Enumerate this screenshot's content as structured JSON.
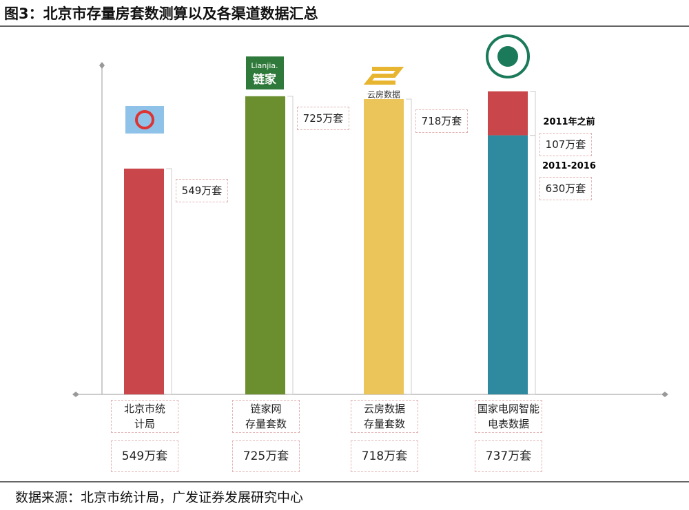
{
  "chart_data": {
    "type": "bar",
    "title": "图3：北京市存量房套数测算以及各渠道数据汇总",
    "source": "数据来源：北京市统计局，广发证券发展研究中心",
    "categories": [
      "北京市统\n计局",
      "链家网\n存量套数",
      "云房数据\n存量套数",
      "国家电网智能\n电表数据"
    ],
    "ylim": [
      0,
      800
    ],
    "series": [
      {
        "name": "2011-2016",
        "colors": [
          "#c9474a",
          "#6b8e2f",
          "#ecc55a",
          "#2f8aa0"
        ],
        "values": [
          549,
          725,
          718,
          630
        ],
        "value_labels": [
          "549万套",
          "725万套",
          "718万套",
          "630万套"
        ]
      },
      {
        "name": "2011年之前",
        "color": "#c9474a",
        "values": [
          null,
          null,
          null,
          107
        ],
        "value_labels": [
          null,
          null,
          null,
          "107万套"
        ]
      }
    ],
    "totals": [
      549,
      725,
      718,
      737
    ],
    "total_labels": [
      "549万套",
      "725万套",
      "718万套",
      "737万套"
    ],
    "logo_texts": {
      "lianjia_latin": "Lianjia.",
      "lianjia": "链家",
      "yunfang": "云房数据"
    }
  }
}
